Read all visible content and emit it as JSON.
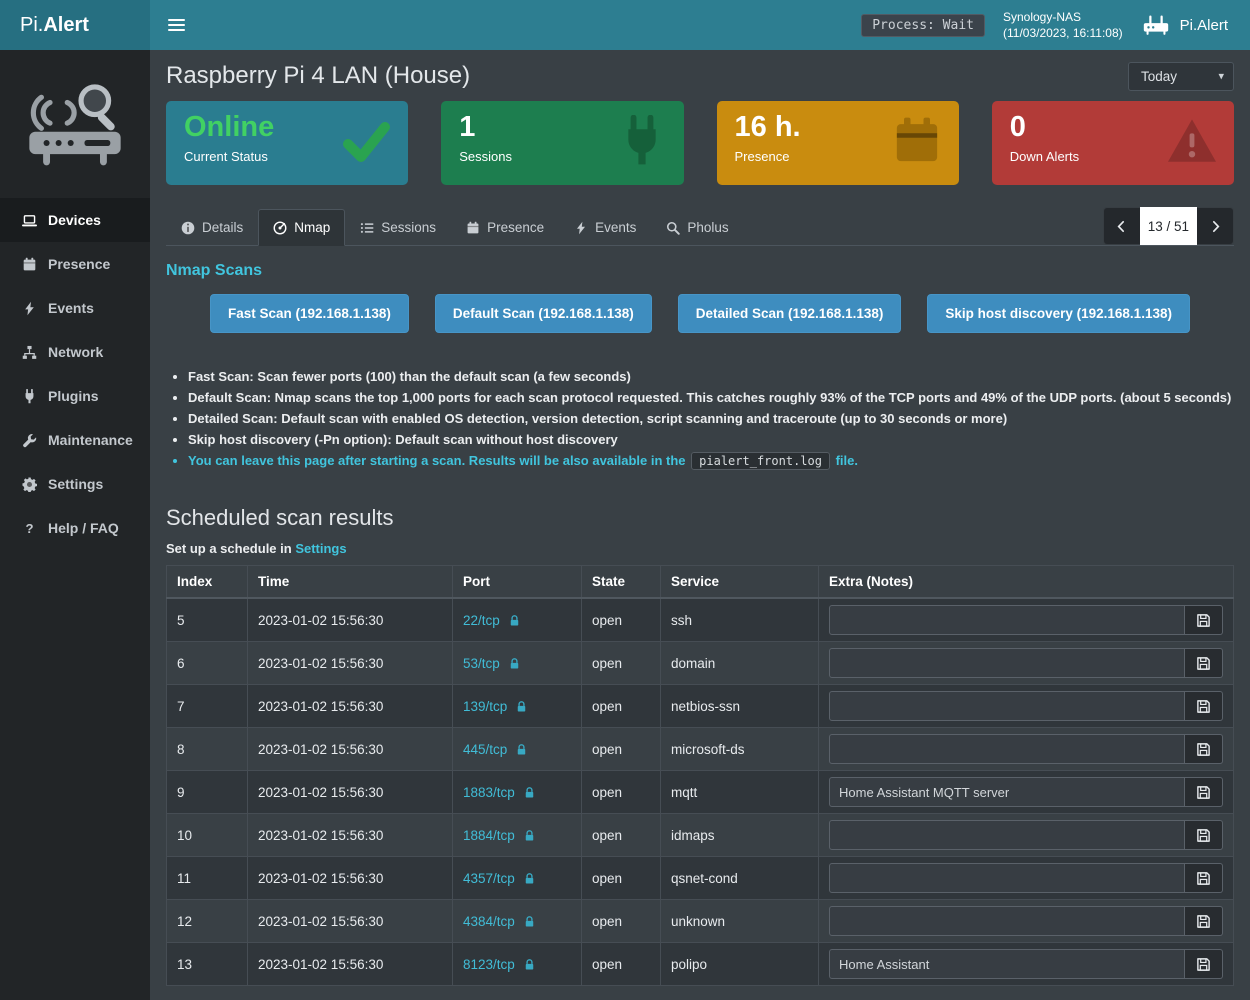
{
  "header": {
    "logo_prefix": "Pi.",
    "logo_bold": "Alert",
    "process_badge": "Process: Wait",
    "nas_name": "Synology-NAS",
    "nas_time": "(11/03/2023, 16:11:08)",
    "app_name": "Pi.Alert"
  },
  "sidebar": {
    "items": [
      {
        "label": "Devices",
        "icon": "laptop",
        "active": true
      },
      {
        "label": "Presence",
        "icon": "calendar",
        "active": false
      },
      {
        "label": "Events",
        "icon": "bolt",
        "active": false
      },
      {
        "label": "Network",
        "icon": "sitemap",
        "active": false
      },
      {
        "label": "Plugins",
        "icon": "plug",
        "active": false
      },
      {
        "label": "Maintenance",
        "icon": "wrench",
        "active": false
      },
      {
        "label": "Settings",
        "icon": "gear",
        "active": false
      },
      {
        "label": "Help / FAQ",
        "icon": "question",
        "active": false
      }
    ]
  },
  "page": {
    "title": "Raspberry Pi 4 LAN (House)",
    "period_select": "Today"
  },
  "cards": [
    {
      "id": "current-status",
      "value": "Online",
      "label": "Current Status",
      "bg": "#2a7d90",
      "value_color": "#41d163",
      "icon": "check",
      "icon_color": "#2aa350"
    },
    {
      "id": "sessions",
      "value": "1",
      "label": "Sessions",
      "bg": "#1d7e4f",
      "value_color": "#ffffff",
      "icon": "plug",
      "icon_color": "#15603a"
    },
    {
      "id": "presence",
      "value": "16 h.",
      "label": "Presence",
      "bg": "#c98c0f",
      "value_color": "#ffffff",
      "icon": "calendar",
      "icon_color": "#a06e08"
    },
    {
      "id": "down-alerts",
      "value": "0",
      "label": "Down Alerts",
      "bg": "#b23b38",
      "value_color": "#ffffff",
      "icon": "warning",
      "icon_color": "#8e2f2d"
    }
  ],
  "tabs": [
    {
      "label": "Details",
      "icon": "info",
      "active": false
    },
    {
      "label": "Nmap",
      "icon": "nmap",
      "active": true
    },
    {
      "label": "Sessions",
      "icon": "list",
      "active": false
    },
    {
      "label": "Presence",
      "icon": "calendar",
      "active": false
    },
    {
      "label": "Events",
      "icon": "bolt",
      "active": false
    },
    {
      "label": "Pholus",
      "icon": "search",
      "active": false
    }
  ],
  "pagination": {
    "current": "13 / 51"
  },
  "nmap": {
    "heading": "Nmap Scans",
    "buttons": [
      {
        "id": "fast-scan",
        "label": "Fast Scan (192.168.1.138)"
      },
      {
        "id": "default-scan",
        "label": "Default Scan (192.168.1.138)"
      },
      {
        "id": "detailed-scan",
        "label": "Detailed Scan (192.168.1.138)"
      },
      {
        "id": "skip-host-discovery-scan",
        "label": "Skip host discovery (192.168.1.138)"
      }
    ],
    "bullets": [
      "Fast Scan: Scan fewer ports (100) than the default scan (a few seconds)",
      "Default Scan: Nmap scans the top 1,000 ports for each scan protocol requested. This catches roughly 93% of the TCP ports and 49% of the UDP ports. (about 5 seconds)",
      "Detailed Scan: Default scan with enabled OS detection, version detection, script scanning and traceroute (up to 30 seconds or more)",
      "Skip host discovery (-Pn option): Default scan without host discovery"
    ],
    "note": {
      "prefix": "You can leave this page after starting a scan. Results will be also available in the ",
      "code": "pialert_front.log",
      "suffix": " file."
    }
  },
  "results": {
    "heading": "Scheduled scan results",
    "schedule_prefix": "Set up a schedule in ",
    "schedule_link": "Settings",
    "table": {
      "headers": [
        "Index",
        "Time",
        "Port",
        "State",
        "Service",
        "Extra (Notes)"
      ],
      "rows": [
        {
          "index": "5",
          "time": "2023-01-02 15:56:30",
          "port": "22/tcp",
          "state": "open",
          "service": "ssh",
          "note": ""
        },
        {
          "index": "6",
          "time": "2023-01-02 15:56:30",
          "port": "53/tcp",
          "state": "open",
          "service": "domain",
          "note": ""
        },
        {
          "index": "7",
          "time": "2023-01-02 15:56:30",
          "port": "139/tcp",
          "state": "open",
          "service": "netbios-ssn",
          "note": ""
        },
        {
          "index": "8",
          "time": "2023-01-02 15:56:30",
          "port": "445/tcp",
          "state": "open",
          "service": "microsoft-ds",
          "note": ""
        },
        {
          "index": "9",
          "time": "2023-01-02 15:56:30",
          "port": "1883/tcp",
          "state": "open",
          "service": "mqtt",
          "note": "Home Assistant MQTT server"
        },
        {
          "index": "10",
          "time": "2023-01-02 15:56:30",
          "port": "1884/tcp",
          "state": "open",
          "service": "idmaps",
          "note": ""
        },
        {
          "index": "11",
          "time": "2023-01-02 15:56:30",
          "port": "4357/tcp",
          "state": "open",
          "service": "qsnet-cond",
          "note": ""
        },
        {
          "index": "12",
          "time": "2023-01-02 15:56:30",
          "port": "4384/tcp",
          "state": "open",
          "service": "unknown",
          "note": ""
        },
        {
          "index": "13",
          "time": "2023-01-02 15:56:30",
          "port": "8123/tcp",
          "state": "open",
          "service": "polipo",
          "note": "Home Assistant"
        }
      ]
    }
  }
}
